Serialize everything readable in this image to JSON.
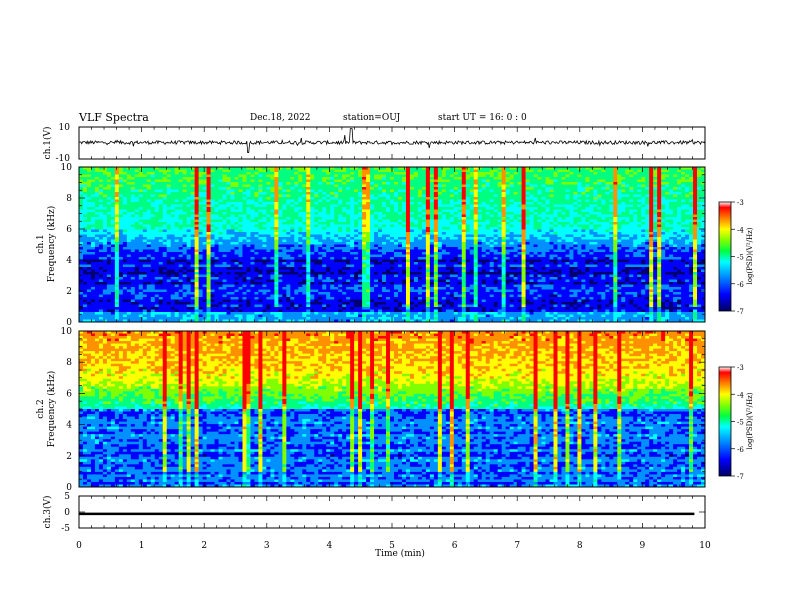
{
  "header": {
    "title": "VLF Spectra",
    "date": "Dec.18, 2022",
    "station": "station=OUJ",
    "start_ut": "start  UT =   16: 0  : 0"
  },
  "chart_data": [
    {
      "type": "line",
      "panel": "ch1-waveform",
      "ylabel": "ch.1(V)",
      "yticks": [
        "10",
        "-10"
      ],
      "ylim": [
        -10,
        10
      ],
      "description_values": "noisy trace centred near 0 V"
    },
    {
      "type": "heatmap",
      "panel": "ch1-spectrogram",
      "ylabel": "ch.1 Frequency (kHz)",
      "ylim": [
        0,
        10
      ],
      "yticks": [
        "0",
        "2",
        "4",
        "6",
        "8",
        "10"
      ],
      "colorbar": {
        "label": "log(PSD)(V²/Hz)",
        "ticks": [
          "-3",
          "-4",
          "-5",
          "-6",
          "-7"
        ],
        "range": [
          -7,
          -3
        ]
      }
    },
    {
      "type": "heatmap",
      "panel": "ch2-spectrogram",
      "ylabel": "ch.2 Frequency (kHz)",
      "ylim": [
        0,
        10
      ],
      "yticks": [
        "0",
        "2",
        "4",
        "6",
        "8",
        "10"
      ],
      "colorbar": {
        "label": "log(PSD)(V²/Hz)",
        "ticks": [
          "-3",
          "-4",
          "-5",
          "-6",
          "-7"
        ],
        "range": [
          -7,
          -3
        ]
      }
    },
    {
      "type": "line",
      "panel": "ch3-waveform",
      "ylabel": "ch.3(V)",
      "yticks": [
        "5",
        "0",
        "-5"
      ],
      "ylim": [
        -5,
        5
      ],
      "level": -0.6
    }
  ],
  "xaxis": {
    "xlabel": "Time  (min)",
    "xlim": [
      0,
      10
    ],
    "ticks": [
      "0",
      "1",
      "2",
      "3",
      "4",
      "5",
      "6",
      "7",
      "8",
      "9",
      "10"
    ]
  },
  "colors": {
    "scale": [
      "#000070",
      "#0000ff",
      "#0090ff",
      "#00ffff",
      "#00ff80",
      "#80ff00",
      "#ffff00",
      "#ff9000",
      "#ff0000",
      "#ffffff"
    ]
  }
}
